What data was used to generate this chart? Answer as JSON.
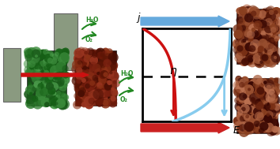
{
  "fig_width": 3.54,
  "fig_height": 1.89,
  "dpi": 100,
  "background": "#ffffff",
  "red_color": "#cc1111",
  "blue_color": "#88ccee",
  "green_color": "#228822",
  "top_arrow_color": "#66aadd",
  "bottom_arrow_color": "#cc2222",
  "steel_color": "#8a9a80",
  "green_rust_base": "#1a4a1a",
  "green_rust_noise": "#2d7a2d",
  "brown_rust_base": "#4a1005",
  "afm_base": "#5a2005"
}
